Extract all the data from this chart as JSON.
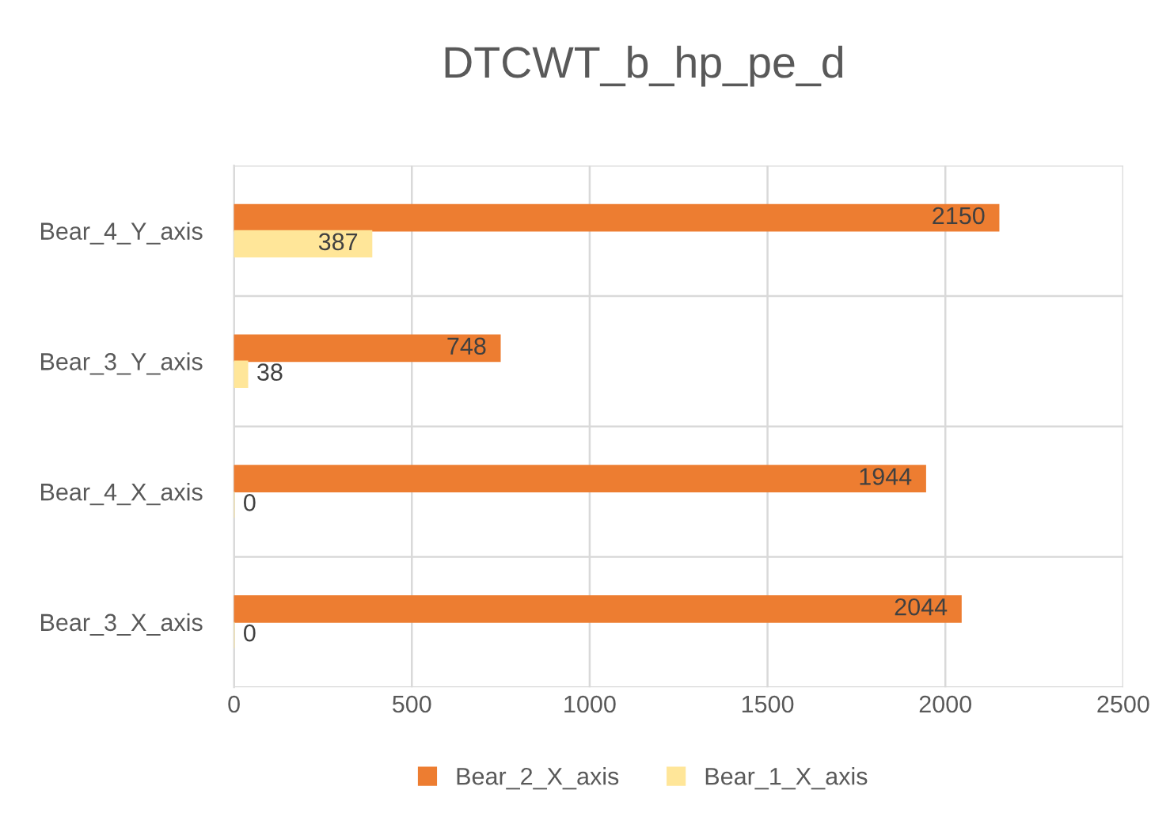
{
  "chart_data": {
    "type": "bar",
    "orientation": "horizontal",
    "title": "DTCWT_b_hp_pe_d",
    "categories": [
      "Bear_4_Y_axis",
      "Bear_3_Y_axis",
      "Bear_4_X_axis",
      "Bear_3_X_axis"
    ],
    "series": [
      {
        "name": "Bear_2_X_axis",
        "color": "#ed7d31",
        "values": [
          2150,
          748,
          1944,
          2044
        ]
      },
      {
        "name": "Bear_1_X_axis",
        "color": "#ffe699",
        "values": [
          387,
          38,
          0,
          0
        ]
      }
    ],
    "xlim": [
      0,
      2500
    ],
    "xticks": [
      0,
      500,
      1000,
      1500,
      2000,
      2500
    ],
    "grid": true,
    "legend": "bottom",
    "data_labels": true
  }
}
